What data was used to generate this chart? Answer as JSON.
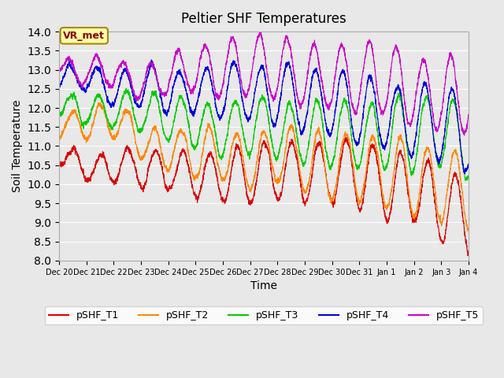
{
  "title": "Peltier SHF Temperatures",
  "xlabel": "Time",
  "ylabel": "Soil Temperature",
  "ylim": [
    8.0,
    14.0
  ],
  "yticks": [
    8.0,
    8.5,
    9.0,
    9.5,
    10.0,
    10.5,
    11.0,
    11.5,
    12.0,
    12.5,
    13.0,
    13.5,
    14.0
  ],
  "xtick_labels": [
    "Dec 20",
    "Dec 21",
    "Dec 22",
    "Dec 23",
    "Dec 24",
    "Dec 25",
    "Dec 26",
    "Dec 27",
    "Dec 28",
    "Dec 29",
    "Dec 30",
    "Dec 31",
    "Jan 1",
    "Jan 2",
    "Jan 3",
    "Jan 4"
  ],
  "series_colors": [
    "#dd0000",
    "#ff8800",
    "#00cc00",
    "#0000dd",
    "#cc00cc"
  ],
  "series_labels": [
    "pSHF_T1",
    "pSHF_T2",
    "pSHF_T3",
    "pSHF_T4",
    "pSHF_T5"
  ],
  "background_color": "#e8e8e8",
  "plot_bg_color": "#e8e8e8",
  "annotation_text": "VR_met",
  "annotation_bg": "#ffffaa",
  "annotation_border": "#aa8800",
  "annotation_text_color": "#880000",
  "n_points": 3600,
  "seed": 42
}
